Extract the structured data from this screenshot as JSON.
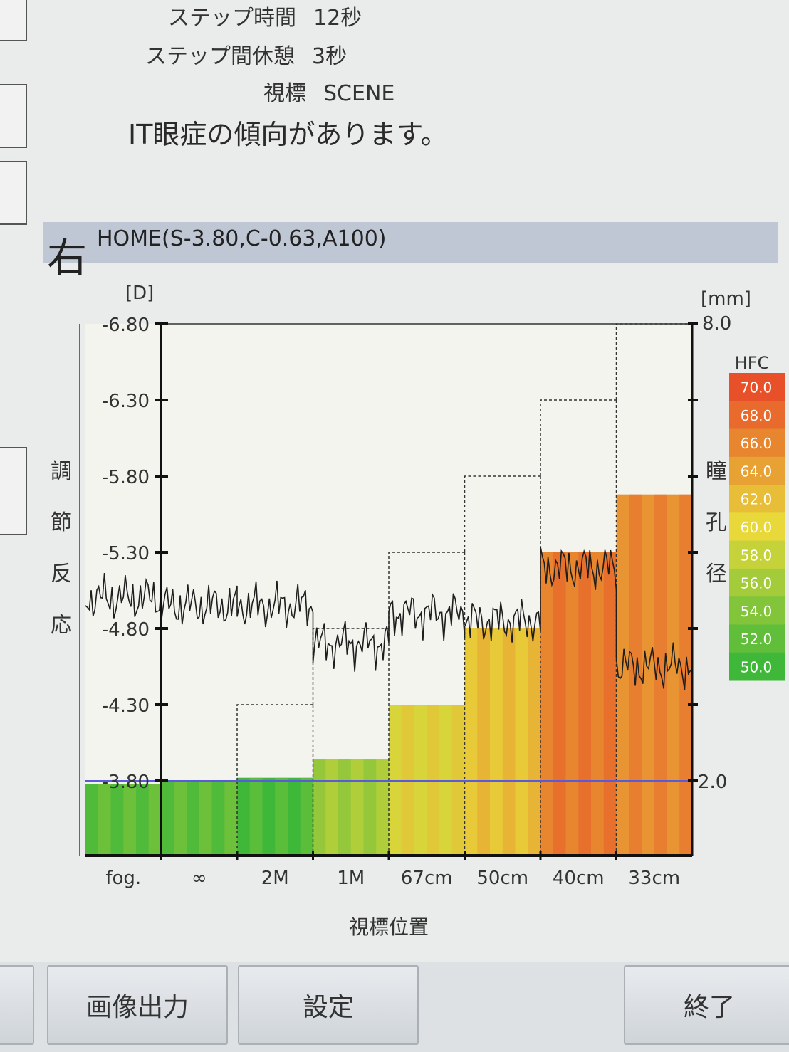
{
  "settings": [
    {
      "label": "ステップ時間",
      "value": "12秒"
    },
    {
      "label": "ステップ間休憩",
      "value": "3秒"
    },
    {
      "label": "視標",
      "value": "SCENE"
    }
  ],
  "warning": "IT眼症の傾向があります。",
  "eye": "右",
  "home": "HOME(S-3.80,C-0.63,A100)",
  "buttons": {
    "export": "画像出力",
    "settings": "設定",
    "end": "終了"
  },
  "colors": {
    "hfc_low": "#3fb83a",
    "hfc_mid": "#e8d83a",
    "hfc_high": "#e8502a",
    "baseline": "#5a5adc"
  },
  "chart_data": {
    "type": "bar",
    "left_axis": {
      "unit": "[D]",
      "label": "調節反応",
      "ticks": [
        "-6.80",
        "-6.30",
        "-5.80",
        "-5.30",
        "-4.80",
        "-4.30",
        "-3.80"
      ],
      "range": [
        -3.8,
        -6.8
      ]
    },
    "right_axis": {
      "unit": "[mm]",
      "label": "瞳孔径",
      "ticks": [
        "8.0",
        "2.0"
      ],
      "range": [
        2.0,
        8.0
      ]
    },
    "xlabel": "視標位置",
    "categories": [
      "fog.",
      "∞",
      "2M",
      "1M",
      "67cm",
      "50cm",
      "40cm",
      "33cm"
    ],
    "target_diopters": [
      -3.8,
      -3.8,
      -4.3,
      -4.8,
      -5.3,
      -5.8,
      -6.3,
      -6.8
    ],
    "bar_response": [
      -3.78,
      -3.8,
      -3.82,
      -3.94,
      -4.3,
      -4.8,
      -5.3,
      -5.68
    ],
    "hfc_values": [
      51,
      51,
      50,
      55,
      59,
      61,
      66,
      65
    ],
    "response_line": [
      -5.0,
      -4.95,
      -4.95,
      -4.7,
      -4.9,
      -4.85,
      -5.2,
      -4.55
    ],
    "baseline": -3.8,
    "hfc_legend": {
      "title": "HFC",
      "values": [
        "70.0",
        "68.0",
        "66.0",
        "64.0",
        "62.0",
        "60.0",
        "58.0",
        "56.0",
        "54.0",
        "52.0",
        "50.0"
      ]
    }
  }
}
